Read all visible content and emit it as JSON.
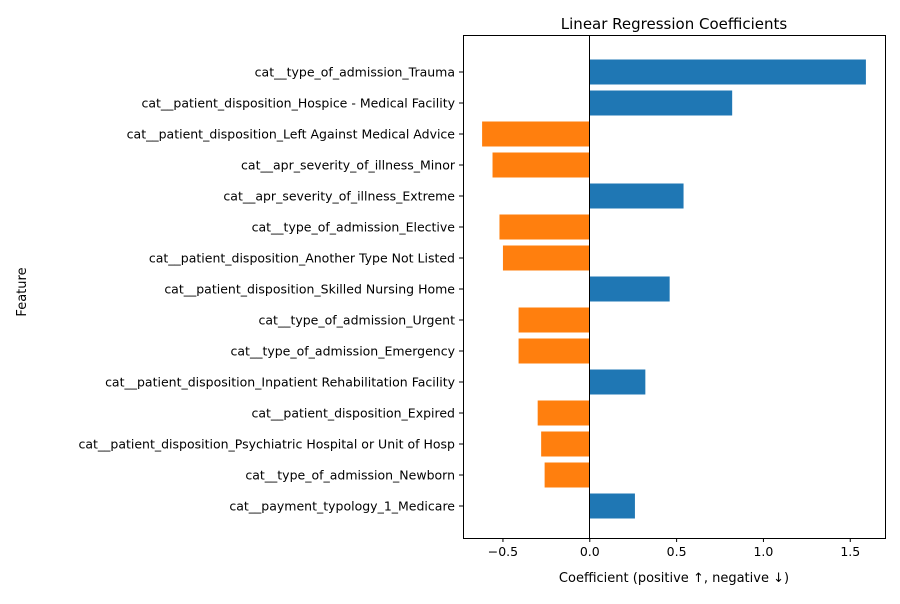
{
  "chart_data": {
    "type": "bar",
    "orientation": "horizontal",
    "title": "Linear Regression Coefficients",
    "xlabel": "Coefficient (positive ↑, negative ↓)",
    "ylabel": "Feature",
    "xlim": [
      -0.73,
      1.7
    ],
    "xticks": [
      -0.5,
      0.0,
      0.5,
      1.0,
      1.5
    ],
    "xtick_labels": [
      "−0.5",
      "0.0",
      "0.5",
      "1.0",
      "1.5"
    ],
    "grid": false,
    "zero_line": true,
    "colors": {
      "positive": "#1f77b4",
      "negative": "#ff7f0e",
      "axis": "#000000",
      "background": "#ffffff"
    },
    "categories": [
      "cat__type_of_admission_Trauma",
      "cat__patient_disposition_Hospice - Medical Facility",
      "cat__patient_disposition_Left Against Medical Advice",
      "cat__apr_severity_of_illness_Minor",
      "cat__apr_severity_of_illness_Extreme",
      "cat__type_of_admission_Elective",
      "cat__patient_disposition_Another Type Not Listed",
      "cat__patient_disposition_Skilled Nursing Home",
      "cat__type_of_admission_Urgent",
      "cat__type_of_admission_Emergency",
      "cat__patient_disposition_Inpatient Rehabilitation Facility",
      "cat__patient_disposition_Expired",
      "cat__patient_disposition_Psychiatric Hospital or Unit of Hosp",
      "cat__type_of_admission_Newborn",
      "cat__payment_typology_1_Medicare"
    ],
    "values": [
      1.59,
      0.82,
      -0.62,
      -0.56,
      0.54,
      -0.52,
      -0.5,
      0.46,
      -0.41,
      -0.41,
      0.32,
      -0.3,
      -0.28,
      -0.26,
      0.26
    ]
  }
}
